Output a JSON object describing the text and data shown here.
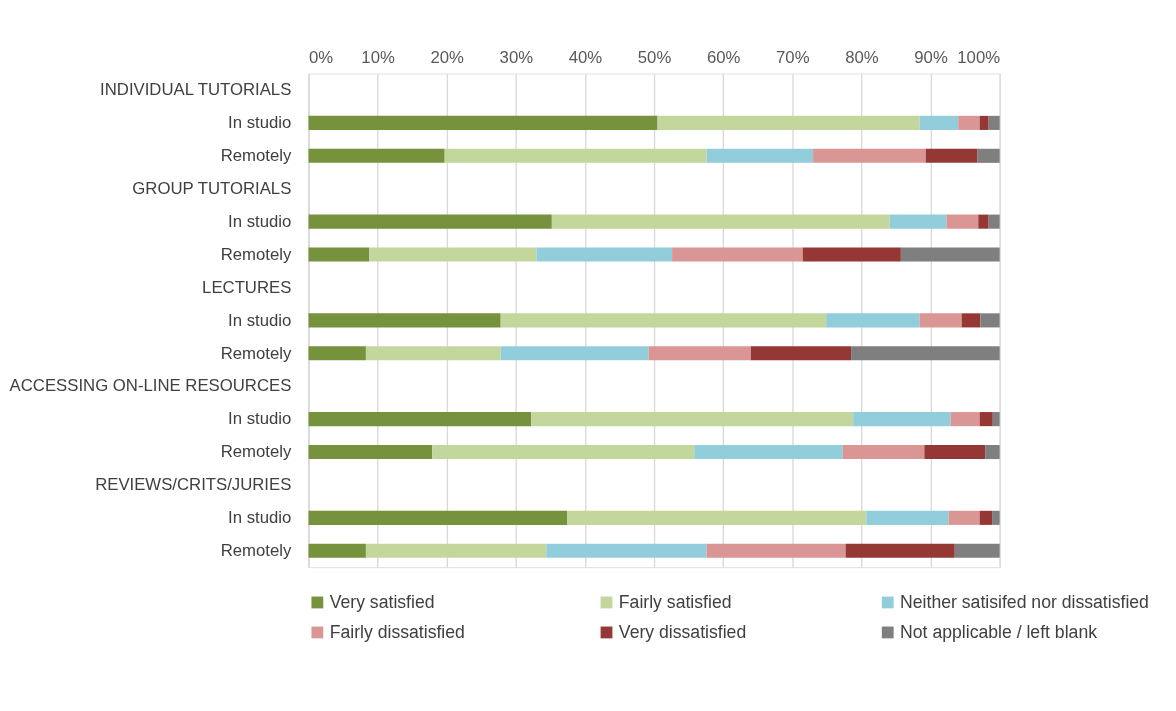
{
  "chart_data": {
    "type": "bar",
    "orientation": "horizontal",
    "stacked": true,
    "categories": [
      "INDIVIDUAL TUTORIALS",
      "In studio",
      "Remotely",
      "GROUP TUTORIALS",
      "In studio",
      "Remotely",
      "LECTURES",
      "In studio",
      "Remotely",
      "ACCESSING ON-LINE RESOURCES",
      "In studio",
      "Remotely",
      "REVIEWS/CRITS/JURIES",
      "In studio",
      "Remotely"
    ],
    "series": [
      {
        "name": "Very satisfied",
        "color": "#76923c",
        "values": [
          null,
          50.5,
          19.7,
          null,
          35.2,
          8.8,
          null,
          27.8,
          8.3,
          null,
          32.2,
          17.9,
          null,
          37.4,
          8.3
        ]
      },
      {
        "name": "Fairly satisfied",
        "color": "#c3d69b",
        "values": [
          null,
          37.9,
          37.9,
          null,
          48.9,
          24.2,
          null,
          47.1,
          19.5,
          null,
          46.6,
          37.9,
          null,
          43.3,
          26.1
        ]
      },
      {
        "name": "Neither satisifed nor dissatisfied",
        "color": "#92cddc",
        "values": [
          null,
          5.6,
          15.4,
          null,
          8.2,
          19.6,
          null,
          13.5,
          21.4,
          null,
          14.1,
          21.5,
          null,
          11.9,
          23.2
        ]
      },
      {
        "name": "Fairly dissatisfied",
        "color": "#d99694",
        "values": [
          null,
          3.1,
          16.3,
          null,
          4.6,
          18.9,
          null,
          6.1,
          14.8,
          null,
          4.2,
          11.8,
          null,
          4.5,
          20.1
        ]
      },
      {
        "name": "Very dissatisfied",
        "color": "#953735",
        "values": [
          null,
          1.3,
          7.5,
          null,
          1.5,
          14.2,
          null,
          2.7,
          14.5,
          null,
          1.9,
          8.8,
          null,
          1.8,
          15.8
        ]
      },
      {
        "name": "Not applicable / left blank",
        "color": "#7f7f7f",
        "values": [
          null,
          1.6,
          3.2,
          null,
          1.6,
          14.3,
          null,
          2.8,
          21.5,
          null,
          1.0,
          2.1,
          null,
          1.1,
          6.5
        ]
      }
    ],
    "xlim": [
      0,
      100
    ],
    "xticks": [
      {
        "value": 0,
        "label": "0%"
      },
      {
        "value": 10,
        "label": "10%"
      },
      {
        "value": 20,
        "label": "20%"
      },
      {
        "value": 30,
        "label": "30%"
      },
      {
        "value": 40,
        "label": "40%"
      },
      {
        "value": 50,
        "label": "50%"
      },
      {
        "value": 60,
        "label": "60%"
      },
      {
        "value": 70,
        "label": "70%"
      },
      {
        "value": 80,
        "label": "80%"
      },
      {
        "value": 90,
        "label": "90%"
      },
      {
        "value": 100,
        "label": "100%"
      }
    ],
    "grid": "x",
    "legend": "bottom"
  }
}
